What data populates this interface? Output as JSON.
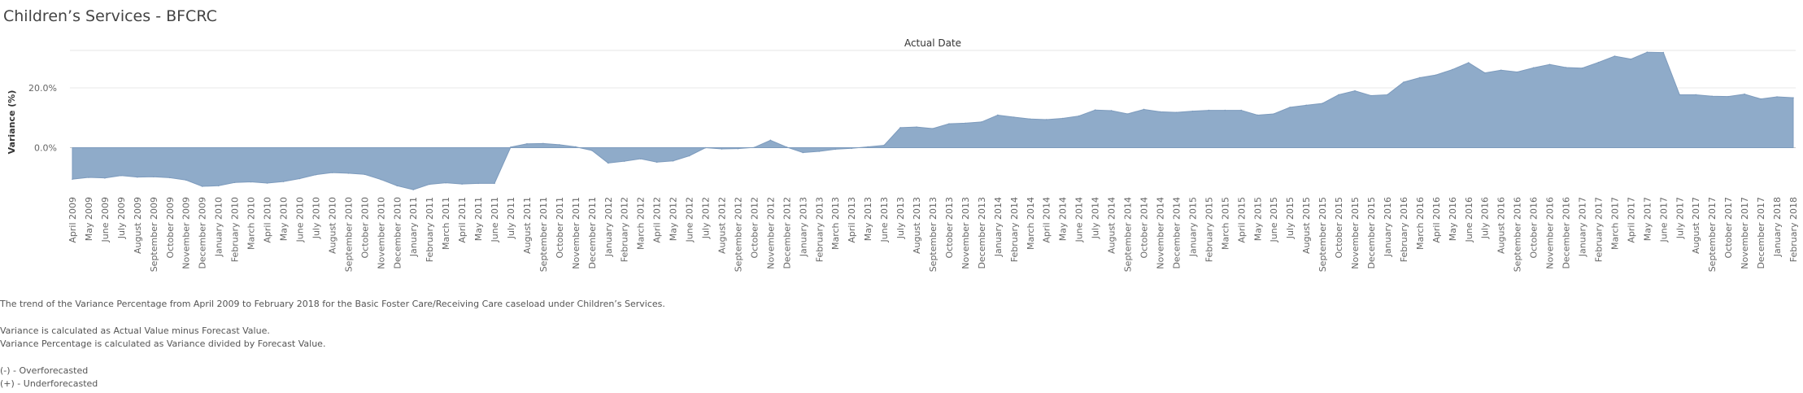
{
  "page": {
    "title": "Children’s Services -  BFCRC"
  },
  "notes": {
    "line1": "The trend of the Variance Percentage from April 2009 to February 2018 for the Basic Foster Care/Receiving Care caseload under Children’s Services.",
    "line2": "Variance is calculated as Actual Value minus Forecast Value.",
    "line3": "Variance Percentage is calculated as Variance divided by Forecast Value.",
    "line4": "(-) - Overforecasted",
    "line5": "(+) - Underforecasted"
  },
  "chart_data": {
    "type": "area",
    "title": "Actual Date",
    "xlabel": "",
    "ylabel": "Variance (%)",
    "ylim": [
      -0.148,
      0.325
    ],
    "yticks": [
      0.0,
      0.2
    ],
    "ytick_labels": [
      "0.0%",
      "20.0%"
    ],
    "grid": true,
    "fill_color": "#8fabc9",
    "x": [
      "April 2009",
      "May 2009",
      "June 2009",
      "July 2009",
      "August 2009",
      "September 2009",
      "October 2009",
      "November 2009",
      "December 2009",
      "January 2010",
      "February 2010",
      "March 2010",
      "April 2010",
      "May 2010",
      "June 2010",
      "July 2010",
      "August 2010",
      "September 2010",
      "October 2010",
      "November 2010",
      "December 2010",
      "January 2011",
      "February 2011",
      "March 2011",
      "April 2011",
      "May 2011",
      "June 2011",
      "July 2011",
      "August 2011",
      "September 2011",
      "October 2011",
      "November 2011",
      "December 2011",
      "January 2012",
      "February 2012",
      "March 2012",
      "April 2012",
      "May 2012",
      "June 2012",
      "July 2012",
      "August 2012",
      "September 2012",
      "October 2012",
      "November 2012",
      "December 2012",
      "January 2013",
      "February 2013",
      "March 2013",
      "April 2013",
      "May 2013",
      "June 2013",
      "July 2013",
      "August 2013",
      "September 2013",
      "October 2013",
      "November 2013",
      "December 2013",
      "January 2014",
      "February 2014",
      "March 2014",
      "April 2014",
      "May 2014",
      "June 2014",
      "July 2014",
      "August 2014",
      "September 2014",
      "October 2014",
      "November 2014",
      "December 2014",
      "January 2015",
      "February 2015",
      "March 2015",
      "April 2015",
      "May 2015",
      "June 2015",
      "July 2015",
      "August 2015",
      "September 2015",
      "October 2015",
      "November 2015",
      "December 2015",
      "January 2016",
      "February 2016",
      "March 2016",
      "April 2016",
      "May 2016",
      "June 2016",
      "July 2016",
      "August 2016",
      "September 2016",
      "October 2016",
      "November 2016",
      "December 2016",
      "January 2017",
      "February 2017",
      "March 2017",
      "April 2017",
      "May 2017",
      "June 2017",
      "July 2017",
      "August 2017",
      "September 2017",
      "October 2017",
      "November 2017",
      "December 2017",
      "January 2018",
      "February 2018"
    ],
    "values": [
      -0.105,
      -0.099,
      -0.101,
      -0.093,
      -0.098,
      -0.097,
      -0.1,
      -0.108,
      -0.129,
      -0.127,
      -0.116,
      -0.114,
      -0.118,
      -0.113,
      -0.103,
      -0.09,
      -0.083,
      -0.085,
      -0.089,
      -0.106,
      -0.127,
      -0.14,
      -0.122,
      -0.117,
      -0.121,
      -0.119,
      -0.119,
      0.002,
      0.013,
      0.014,
      0.01,
      0.003,
      -0.009,
      -0.051,
      -0.045,
      -0.037,
      -0.048,
      -0.044,
      -0.027,
      0.0,
      -0.004,
      -0.003,
      0.001,
      0.025,
      0.002,
      -0.016,
      -0.012,
      -0.005,
      -0.002,
      0.003,
      0.008,
      0.067,
      0.069,
      0.064,
      0.08,
      0.082,
      0.086,
      0.109,
      0.102,
      0.096,
      0.094,
      0.098,
      0.106,
      0.126,
      0.124,
      0.113,
      0.128,
      0.12,
      0.118,
      0.122,
      0.125,
      0.125,
      0.125,
      0.109,
      0.113,
      0.135,
      0.142,
      0.148,
      0.177,
      0.19,
      0.174,
      0.177,
      0.219,
      0.234,
      0.243,
      0.261,
      0.284,
      0.25,
      0.259,
      0.253,
      0.267,
      0.278,
      0.268,
      0.266,
      0.285,
      0.306,
      0.296,
      0.319,
      0.318,
      0.177,
      0.177,
      0.172,
      0.171,
      0.179,
      0.163,
      0.17,
      0.167
    ]
  }
}
